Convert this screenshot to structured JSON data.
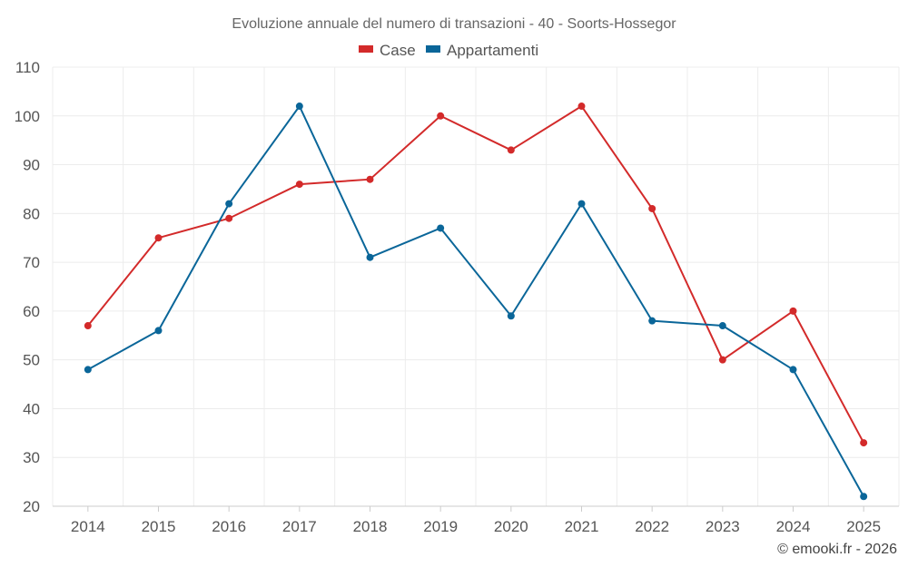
{
  "chart_data": {
    "type": "line",
    "title": "Evoluzione annuale del numero di transazioni - 40 - Soorts-Hossegor",
    "categories": [
      "2014",
      "2015",
      "2016",
      "2017",
      "2018",
      "2019",
      "2020",
      "2021",
      "2022",
      "2023",
      "2024",
      "2025"
    ],
    "series": [
      {
        "name": "Case",
        "color": "#d32a2a",
        "values": [
          57,
          75,
          79,
          86,
          87,
          100,
          93,
          102,
          81,
          50,
          60,
          33
        ]
      },
      {
        "name": "Appartamenti",
        "color": "#0a6699",
        "values": [
          48,
          56,
          82,
          102,
          71,
          77,
          59,
          82,
          58,
          57,
          48,
          22
        ]
      }
    ],
    "ylim": [
      20,
      110
    ],
    "yticks": [
      20,
      30,
      40,
      50,
      60,
      70,
      80,
      90,
      100,
      110
    ],
    "xlabel": "",
    "ylabel": "",
    "grid": true,
    "legend_position": "top-center"
  },
  "credit": "© emooki.fr - 2026"
}
